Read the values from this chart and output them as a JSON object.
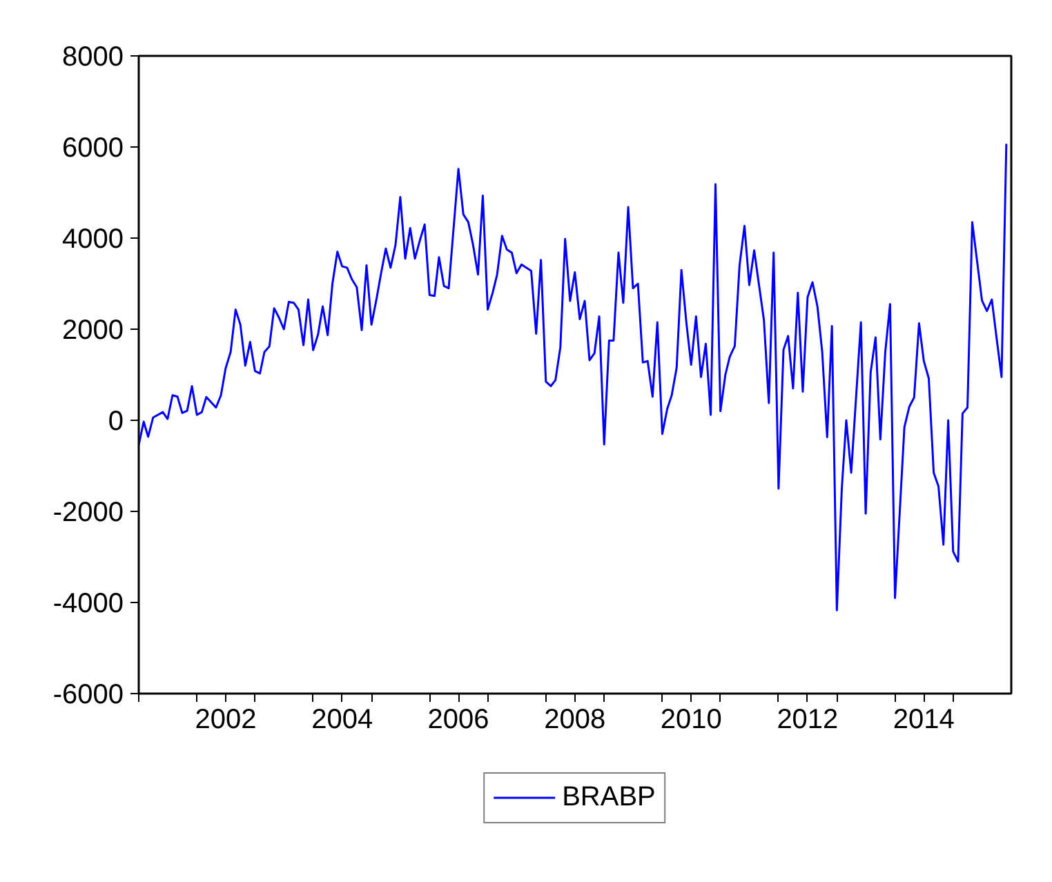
{
  "chart_data": {
    "type": "line",
    "x": [
      "2001-01",
      "2001-02",
      "2001-03",
      "2001-04",
      "2001-06",
      "2001-07",
      "2001-08",
      "2001-09",
      "2001-10",
      "2001-11",
      "2001-12",
      "2002-01",
      "2002-02",
      "2002-03",
      "2002-05",
      "2002-06",
      "2002-07",
      "2002-08",
      "2002-09",
      "2002-10",
      "2002-11",
      "2002-12",
      "2003-01",
      "2003-02",
      "2003-03",
      "2003-04",
      "2003-05",
      "2003-06",
      "2003-07",
      "2003-08",
      "2003-09",
      "2003-10",
      "2003-11",
      "2003-12",
      "2004-01",
      "2004-02",
      "2004-03",
      "2004-04",
      "2004-05",
      "2004-06",
      "2004-07",
      "2004-08",
      "2004-09",
      "2004-10",
      "2004-11",
      "2004-12",
      "2005-01",
      "2005-02",
      "2005-03",
      "2005-04",
      "2005-05",
      "2005-06",
      "2005-07",
      "2005-08",
      "2005-09",
      "2005-10",
      "2005-11",
      "2005-12",
      "2006-01",
      "2006-02",
      "2006-03",
      "2006-04",
      "2006-05",
      "2006-07",
      "2006-08",
      "2006-09",
      "2006-10",
      "2006-11",
      "2006-12",
      "2007-01",
      "2007-02",
      "2007-03",
      "2007-04",
      "2007-05",
      "2007-06",
      "2007-07",
      "2007-08",
      "2007-09",
      "2007-10",
      "2007-11",
      "2007-12",
      "2008-01",
      "2008-02",
      "2008-03",
      "2008-04",
      "2008-05",
      "2008-06",
      "2008-07",
      "2008-08",
      "2008-09",
      "2008-10",
      "2008-11",
      "2008-12",
      "2009-01",
      "2009-02",
      "2009-03",
      "2009-04",
      "2009-05",
      "2009-06",
      "2009-07",
      "2009-08",
      "2009-09",
      "2009-10",
      "2009-11",
      "2009-12",
      "2010-01",
      "2010-02",
      "2010-03",
      "2010-04",
      "2010-05",
      "2010-06",
      "2010-07",
      "2010-08",
      "2010-09",
      "2010-10",
      "2010-11",
      "2010-12",
      "2011-01",
      "2011-02",
      "2011-03",
      "2011-04",
      "2011-05",
      "2011-06",
      "2011-07",
      "2011-08",
      "2011-09",
      "2011-10",
      "2011-11",
      "2011-12",
      "2012-01",
      "2012-02",
      "2012-03",
      "2012-04",
      "2012-05",
      "2012-06",
      "2012-07",
      "2012-08",
      "2012-09",
      "2012-10",
      "2012-11",
      "2012-12",
      "2013-01",
      "2013-02",
      "2013-03",
      "2013-04",
      "2013-06",
      "2013-07",
      "2013-08",
      "2013-09",
      "2013-10",
      "2013-11",
      "2013-12",
      "2014-01",
      "2014-03",
      "2014-04",
      "2014-05",
      "2014-06",
      "2014-07",
      "2014-08",
      "2014-09",
      "2014-10",
      "2014-11",
      "2014-12",
      "2015-01",
      "2015-02",
      "2015-03",
      "2015-04",
      "2015-05",
      "2015-07",
      "2015-08",
      "2015-09",
      "2015-10",
      "2015-11",
      "2015-12"
    ],
    "series": [
      {
        "name": "BRABP",
        "color": "#0000ff",
        "values": [
          -540,
          -30,
          -360,
          60,
          180,
          30,
          550,
          520,
          160,
          210,
          750,
          120,
          180,
          510,
          280,
          550,
          1150,
          1500,
          2430,
          2100,
          1200,
          1720,
          1080,
          1030,
          1500,
          1620,
          2460,
          2250,
          2000,
          2600,
          2580,
          2430,
          1650,
          2650,
          1540,
          1890,
          2500,
          1870,
          3000,
          3700,
          3380,
          3350,
          3090,
          2920,
          1980,
          3400,
          2100,
          2650,
          3200,
          3770,
          3350,
          3850,
          4900,
          3550,
          4220,
          3550,
          3950,
          4300,
          2750,
          2730,
          3580,
          2950,
          2900,
          5520,
          4520,
          4350,
          3850,
          3200,
          4930,
          2430,
          2800,
          3200,
          4050,
          3750,
          3680,
          3230,
          3420,
          3350,
          3280,
          1900,
          3520,
          850,
          750,
          880,
          1600,
          3980,
          2620,
          3250,
          2220,
          2620,
          1320,
          1470,
          2280,
          -530,
          1750,
          1750,
          3680,
          2580,
          4680,
          2900,
          3000,
          1270,
          1300,
          520,
          2150,
          -300,
          250,
          550,
          1150,
          3300,
          2150,
          1220,
          2280,
          950,
          1680,
          120,
          5180,
          200,
          1000,
          1400,
          1630,
          3400,
          4270,
          2970,
          3730,
          2950,
          2200,
          380,
          3680,
          -1500,
          1550,
          1850,
          700,
          2800,
          630,
          2700,
          3030,
          2500,
          1500,
          -370,
          2070,
          -4170,
          -1500,
          0,
          -1150,
          2150,
          -2050,
          1050,
          1820,
          -420,
          1500,
          2550,
          -3900,
          -150,
          300,
          500,
          2130,
          1300,
          920,
          -1150,
          -1450,
          -2730,
          0,
          -2880,
          -3100,
          150,
          280,
          4350,
          2630,
          2400,
          2650,
          1800,
          950,
          6070
        ]
      }
    ],
    "xlim": [
      "2001-01",
      "2016-01"
    ],
    "xticks": [
      {
        "value": "2001",
        "label": null
      },
      {
        "value": "2002",
        "label": null
      },
      {
        "value": "2002-07",
        "label": "2002"
      },
      {
        "value": "2003",
        "label": null
      },
      {
        "value": "2004",
        "label": null
      },
      {
        "value": "2004-07",
        "label": "2004"
      },
      {
        "value": "2005",
        "label": null
      },
      {
        "value": "2006",
        "label": null
      },
      {
        "value": "2006-07",
        "label": "2006"
      },
      {
        "value": "2007",
        "label": null
      },
      {
        "value": "2008",
        "label": null
      },
      {
        "value": "2008-07",
        "label": "2008"
      },
      {
        "value": "2009",
        "label": null
      },
      {
        "value": "2010",
        "label": null
      },
      {
        "value": "2010-07",
        "label": "2010"
      },
      {
        "value": "2011",
        "label": null
      },
      {
        "value": "2012",
        "label": null
      },
      {
        "value": "2012-07",
        "label": "2012"
      },
      {
        "value": "2013",
        "label": null
      },
      {
        "value": "2014",
        "label": null
      },
      {
        "value": "2014-07",
        "label": "2014"
      },
      {
        "value": "2015",
        "label": null
      }
    ],
    "ylim": [
      -6000,
      8000
    ],
    "yticks": [
      -6000,
      -4000,
      -2000,
      0,
      2000,
      4000,
      6000,
      8000
    ],
    "grid": false,
    "legend": "bottom",
    "marker": "none",
    "line_style": "solid"
  }
}
